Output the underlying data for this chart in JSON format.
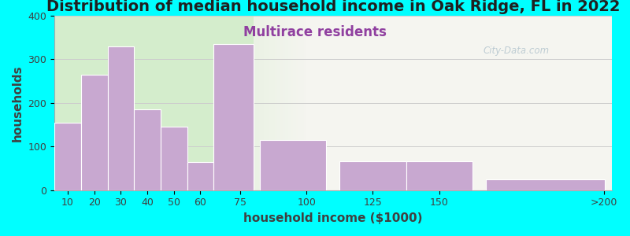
{
  "title": "Distribution of median household income in Oak Ridge, FL in 2022",
  "subtitle": "Multirace residents",
  "xlabel": "household income ($1000)",
  "ylabel": "households",
  "bar_labels": [
    "10",
    "20",
    "30",
    "40",
    "50",
    "60",
    "75",
    "100",
    "125",
    "150",
    ">200"
  ],
  "bar_lefts": [
    5,
    15,
    25,
    35,
    45,
    55,
    65,
    82.5,
    112.5,
    137.5,
    167.5
  ],
  "bar_widths": [
    10,
    10,
    10,
    10,
    10,
    10,
    15,
    25,
    25,
    25,
    45
  ],
  "bar_values": [
    155,
    265,
    330,
    185,
    145,
    65,
    335,
    115,
    67,
    67,
    25
  ],
  "bar_color": "#c8a8d0",
  "bar_edgecolor": "#ffffff",
  "background_outer": "#00ffff",
  "background_inner_left": "#d4edcc",
  "background_inner_right": "#f5f5f0",
  "ylim": [
    0,
    400
  ],
  "yticks": [
    0,
    100,
    200,
    300,
    400
  ],
  "title_fontsize": 14,
  "subtitle_fontsize": 12,
  "subtitle_color": "#9040a0",
  "axis_label_fontsize": 11,
  "tick_fontsize": 9,
  "watermark_text": "City-Data.com",
  "ylabel_fontsize": 11,
  "xtick_positions": [
    10,
    20,
    30,
    40,
    50,
    60,
    75,
    100,
    125,
    150,
    212
  ],
  "xtick_labels": [
    "10",
    "20",
    "30",
    "40",
    "50",
    "60",
    "75",
    "100",
    "125",
    "150",
    ">200"
  ]
}
